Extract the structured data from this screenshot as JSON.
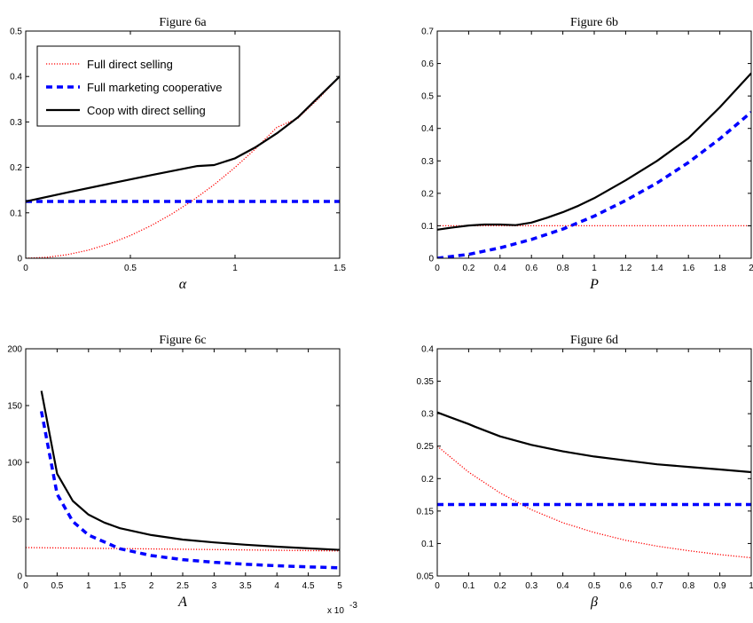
{
  "chart_data": [
    {
      "id": "a",
      "type": "line",
      "title": "Figure 6a",
      "xlabel": "α",
      "ylabel": "",
      "xlim": [
        0,
        1.5
      ],
      "ylim": [
        0,
        0.5
      ],
      "xticks": [
        0,
        0.5,
        1,
        1.5
      ],
      "xticklabels": [
        "0",
        "0.5",
        "1",
        "1.5"
      ],
      "yticks": [
        0,
        0.1,
        0.2,
        0.3,
        0.4,
        0.5
      ],
      "yticklabels": [
        "0",
        "0.1",
        "0.2",
        "0.3",
        "0.4",
        "0.5"
      ],
      "grid": false,
      "legend": "top-left",
      "series": [
        {
          "name": "Full direct selling",
          "style": "dotted",
          "color": "#ff0000",
          "x": [
            0,
            0.1,
            0.2,
            0.3,
            0.4,
            0.5,
            0.6,
            0.7,
            0.8,
            0.9,
            1.0,
            1.1,
            1.2,
            1.3,
            1.4,
            1.5
          ],
          "y": [
            0,
            0.002,
            0.008,
            0.018,
            0.032,
            0.05,
            0.072,
            0.098,
            0.128,
            0.162,
            0.2,
            0.242,
            0.288,
            0.308,
            0.352,
            0.4
          ]
        },
        {
          "name": "Full marketing cooperative",
          "style": "dashed",
          "color": "#0000ff",
          "x": [
            0,
            1.5
          ],
          "y": [
            0.125,
            0.125
          ]
        },
        {
          "name": "Coop with direct selling",
          "style": "solid",
          "color": "#000000",
          "x": [
            0,
            0.2,
            0.4,
            0.6,
            0.82,
            0.9,
            1.0,
            1.1,
            1.2,
            1.3,
            1.4,
            1.5
          ],
          "y": [
            0.125,
            0.145,
            0.164,
            0.183,
            0.203,
            0.205,
            0.22,
            0.245,
            0.275,
            0.31,
            0.355,
            0.4
          ]
        }
      ]
    },
    {
      "id": "b",
      "type": "line",
      "title": "Figure 6b",
      "xlabel": "P",
      "ylabel": "",
      "xlim": [
        0,
        2
      ],
      "ylim": [
        0,
        0.7
      ],
      "xticks": [
        0,
        0.2,
        0.4,
        0.6,
        0.8,
        1,
        1.2,
        1.4,
        1.6,
        1.8,
        2
      ],
      "xticklabels": [
        "0",
        "0.2",
        "0.4",
        "0.6",
        "0.8",
        "1",
        "1.2",
        "1.4",
        "1.6",
        "1.8",
        "2"
      ],
      "yticks": [
        0,
        0.1,
        0.2,
        0.3,
        0.4,
        0.5,
        0.6,
        0.7
      ],
      "yticklabels": [
        "0",
        "0.1",
        "0.2",
        "0.3",
        "0.4",
        "0.5",
        "0.6",
        "0.7"
      ],
      "grid": false,
      "series": [
        {
          "name": "Full direct selling",
          "style": "dotted",
          "color": "#ff0000",
          "x": [
            0,
            2
          ],
          "y": [
            0.1,
            0.1
          ]
        },
        {
          "name": "Full marketing cooperative",
          "style": "dashed",
          "color": "#0000ff",
          "x": [
            0,
            0.2,
            0.4,
            0.6,
            0.8,
            1.0,
            1.2,
            1.4,
            1.6,
            1.8,
            2.0
          ],
          "y": [
            0,
            0.012,
            0.032,
            0.058,
            0.09,
            0.13,
            0.178,
            0.232,
            0.295,
            0.368,
            0.45
          ]
        },
        {
          "name": "Coop with direct selling",
          "style": "solid",
          "color": "#000000",
          "x": [
            0,
            0.1,
            0.2,
            0.3,
            0.4,
            0.5,
            0.6,
            0.7,
            0.8,
            0.9,
            1.0,
            1.2,
            1.4,
            1.6,
            1.8,
            2.0
          ],
          "y": [
            0.088,
            0.095,
            0.101,
            0.104,
            0.104,
            0.102,
            0.11,
            0.125,
            0.142,
            0.162,
            0.185,
            0.24,
            0.3,
            0.37,
            0.465,
            0.57
          ]
        }
      ]
    },
    {
      "id": "c",
      "type": "line",
      "title": "Figure 6c",
      "xlabel": "A",
      "ylabel": "",
      "x_exponent_label": "x 10",
      "x_exponent": "-3",
      "xlim": [
        0,
        5
      ],
      "ylim": [
        0,
        200
      ],
      "xticks": [
        0,
        0.5,
        1,
        1.5,
        2,
        2.5,
        3,
        3.5,
        4,
        4.5,
        5
      ],
      "xticklabels": [
        "0",
        "0.5",
        "1",
        "1.5",
        "2",
        "2.5",
        "3",
        "3.5",
        "4",
        "4.5",
        "5"
      ],
      "yticks": [
        0,
        50,
        100,
        150,
        200
      ],
      "yticklabels": [
        "0",
        "50",
        "100",
        "150",
        "200"
      ],
      "grid": false,
      "series": [
        {
          "name": "Full direct selling",
          "style": "dotted",
          "color": "#ff0000",
          "x": [
            0,
            5
          ],
          "y": [
            25,
            22
          ]
        },
        {
          "name": "Full marketing cooperative",
          "style": "dashed",
          "color": "#0000ff",
          "x": [
            0.25,
            0.5,
            0.75,
            1.0,
            1.5,
            2.0,
            2.5,
            3.0,
            3.5,
            4.0,
            4.5,
            5.0
          ],
          "y": [
            145,
            72,
            48,
            36,
            24,
            18,
            14.4,
            12,
            10.3,
            9,
            8,
            7.2
          ]
        },
        {
          "name": "Coop with direct selling",
          "style": "solid",
          "color": "#000000",
          "x": [
            0.25,
            0.5,
            0.75,
            1.0,
            1.25,
            1.5,
            2.0,
            2.5,
            3.0,
            3.5,
            4.0,
            4.5,
            5.0
          ],
          "y": [
            163,
            90,
            66,
            54,
            47,
            42,
            36,
            32,
            29.5,
            27.5,
            25.8,
            24.3,
            23
          ]
        }
      ]
    },
    {
      "id": "d",
      "type": "line",
      "title": "Figure 6d",
      "xlabel": "β",
      "ylabel": "",
      "xlim": [
        0,
        1
      ],
      "ylim": [
        0.05,
        0.4
      ],
      "xticks": [
        0,
        0.1,
        0.2,
        0.3,
        0.4,
        0.5,
        0.6,
        0.7,
        0.8,
        0.9,
        1
      ],
      "xticklabels": [
        "0",
        "0.1",
        "0.2",
        "0.3",
        "0.4",
        "0.5",
        "0.6",
        "0.7",
        "0.8",
        "0.9",
        "1"
      ],
      "yticks": [
        0.05,
        0.1,
        0.15,
        0.2,
        0.25,
        0.3,
        0.35,
        0.4
      ],
      "yticklabels": [
        "0.05",
        "0.1",
        "0.15",
        "0.2",
        "0.25",
        "0.3",
        "0.35",
        "0.4"
      ],
      "grid": false,
      "series": [
        {
          "name": "Full direct selling",
          "style": "dotted",
          "color": "#ff0000",
          "x": [
            0,
            0.1,
            0.2,
            0.3,
            0.4,
            0.5,
            0.6,
            0.7,
            0.8,
            0.9,
            1.0
          ],
          "y": [
            0.25,
            0.21,
            0.178,
            0.152,
            0.132,
            0.117,
            0.105,
            0.096,
            0.089,
            0.083,
            0.078
          ]
        },
        {
          "name": "Full marketing cooperative",
          "style": "dashed",
          "color": "#0000ff",
          "x": [
            0,
            1
          ],
          "y": [
            0.16,
            0.16
          ]
        },
        {
          "name": "Coop with direct selling",
          "style": "solid",
          "color": "#000000",
          "x": [
            0,
            0.05,
            0.1,
            0.12,
            0.2,
            0.3,
            0.4,
            0.5,
            0.6,
            0.7,
            0.8,
            0.9,
            1.0
          ],
          "y": [
            0.302,
            0.293,
            0.284,
            0.28,
            0.265,
            0.252,
            0.242,
            0.234,
            0.228,
            0.222,
            0.218,
            0.214,
            0.21
          ]
        }
      ]
    }
  ],
  "legend": {
    "location": "figure-6a top-left",
    "entries": [
      {
        "label": "Full direct selling",
        "style": "dotted",
        "color": "#ff0000"
      },
      {
        "label": "Full marketing cooperative",
        "style": "dashed",
        "color": "#0000ff"
      },
      {
        "label": "Coop with direct selling",
        "style": "solid",
        "color": "#000000"
      }
    ]
  }
}
